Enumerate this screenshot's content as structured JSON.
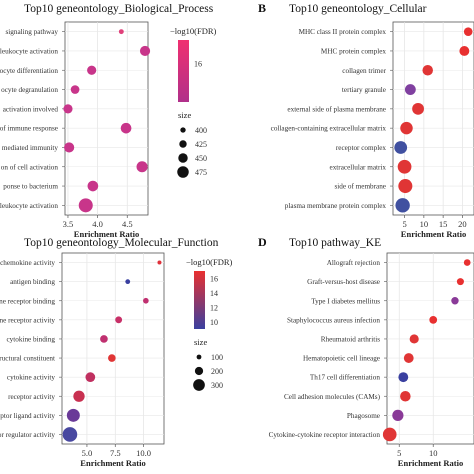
{
  "panels": {
    "A": {
      "letter": "",
      "title": "Top10 geneontology_Biological_Process",
      "xlabel": "Enrichment Ratio",
      "legend_color_title": "−log10(FDR)",
      "legend_size_title": "size"
    },
    "B": {
      "letter": "B",
      "title": "Top10 geneontology_Cellular",
      "xlabel": "Enrichment Ratio"
    },
    "C": {
      "letter": "",
      "title": "Top10 geneontology_Molecular_Function",
      "xlabel": "Enrichment Ratio",
      "legend_color_title": "−log10(FDR)",
      "legend_size_title": "size"
    },
    "D": {
      "letter": "D",
      "title": "Top10 pathway_KE",
      "xlabel": "Enrichment Ratio"
    }
  },
  "chart_data": [
    {
      "panel": "A",
      "type": "scatter",
      "title": "Top10 geneontology_Biological_Process",
      "xlabel": "Enrichment Ratio",
      "ylabel": "",
      "xlim": [
        3.45,
        4.85
      ],
      "xticks": [
        "3.5",
        "4.0",
        "4.5"
      ],
      "xtick_values": [
        3.5,
        4.0,
        4.5
      ],
      "grid": true,
      "color_legend": {
        "title": "−log10(FDR)",
        "ticks": [
          "16"
        ],
        "colors": [
          "#f03070",
          "#b0308a"
        ]
      },
      "size_legend": {
        "title": "size",
        "values": [
          400,
          425,
          450,
          475
        ],
        "labels": [
          "400",
          "425",
          "450",
          "475"
        ]
      },
      "points": [
        {
          "label": "signaling pathway",
          "x": 4.4,
          "size": 385,
          "color": "#e0407a"
        },
        {
          "label": "leukocyte activation",
          "x": 4.8,
          "size": 440,
          "color": "#c8358a"
        },
        {
          "label": "ocyte differentiation",
          "x": 3.9,
          "size": 430,
          "color": "#c8358a"
        },
        {
          "label": "ocyte degranulation",
          "x": 3.62,
          "size": 425,
          "color": "#c8358a"
        },
        {
          "label": "activation involved",
          "x": 3.5,
          "size": 430,
          "color": "#c8358a"
        },
        {
          "label": "of immune response",
          "x": 4.48,
          "size": 445,
          "color": "#c8358a"
        },
        {
          "label": "mediated immunity",
          "x": 3.52,
          "size": 440,
          "color": "#c8358a"
        },
        {
          "label": "on of cell activation",
          "x": 4.75,
          "size": 450,
          "color": "#c8358a"
        },
        {
          "label": "ponse to bacterium",
          "x": 3.92,
          "size": 445,
          "color": "#c8358a"
        },
        {
          "label": "leukocyte activation",
          "x": 3.8,
          "size": 480,
          "color": "#c8358a"
        }
      ]
    },
    {
      "panel": "B",
      "type": "scatter",
      "title": "Top10 geneontology_Cellular",
      "xlabel": "Enrichment Ratio",
      "ylabel": "",
      "xlim": [
        2,
        23
      ],
      "xticks": [
        "5",
        "10",
        "15",
        "20"
      ],
      "xtick_values": [
        5,
        10,
        15,
        20
      ],
      "grid": true,
      "points": [
        {
          "label": "MHC class II protein complex",
          "x": 21.5,
          "size": 200,
          "color": "#e83030"
        },
        {
          "label": "MHC protein complex",
          "x": 20.5,
          "size": 240,
          "color": "#e83030"
        },
        {
          "label": "collagen trimer",
          "x": 11.0,
          "size": 260,
          "color": "#e03535"
        },
        {
          "label": "tertiary granule",
          "x": 6.5,
          "size": 270,
          "color": "#8040a0"
        },
        {
          "label": "external side of plasma membrane",
          "x": 8.5,
          "size": 300,
          "color": "#e03535"
        },
        {
          "label": "collagen-containing extracellular matrix",
          "x": 5.5,
          "size": 320,
          "color": "#e03535"
        },
        {
          "label": "receptor complex",
          "x": 4.0,
          "size": 330,
          "color": "#4050a0"
        },
        {
          "label": "extracellular matrix",
          "x": 5.0,
          "size": 360,
          "color": "#e03535"
        },
        {
          "label": "side of membrane",
          "x": 5.2,
          "size": 370,
          "color": "#e03535"
        },
        {
          "label": "plasma membrane protein complex",
          "x": 4.5,
          "size": 380,
          "color": "#4050a0"
        }
      ]
    },
    {
      "panel": "C",
      "type": "scatter",
      "title": "Top10 geneontology_Molecular_Function",
      "xlabel": "Enrichment Ratio",
      "ylabel": "",
      "xlim": [
        2.8,
        11.8
      ],
      "xticks": [
        "5.0",
        "7.5",
        "10.0"
      ],
      "xtick_values": [
        5.0,
        7.5,
        10.0
      ],
      "grid": true,
      "color_legend": {
        "title": "−log10(FDR)",
        "ticks": [
          "16",
          "14",
          "12",
          "10"
        ],
        "colors": [
          "#e83030",
          "#3a40a0"
        ]
      },
      "size_legend": {
        "title": "size",
        "values": [
          100,
          200,
          300
        ],
        "labels": [
          "100",
          "200",
          "300"
        ]
      },
      "points": [
        {
          "label": "chemokine activity",
          "x": 11.4,
          "size": 60,
          "color": "#e0303a"
        },
        {
          "label": "antigen binding",
          "x": 8.6,
          "size": 80,
          "color": "#3a40a0"
        },
        {
          "label": "mune receptor binding",
          "x": 10.2,
          "size": 100,
          "color": "#c03070"
        },
        {
          "label": "mune receptor activity",
          "x": 7.8,
          "size": 130,
          "color": "#c83068"
        },
        {
          "label": "cytokine binding",
          "x": 6.5,
          "size": 150,
          "color": "#c03070"
        },
        {
          "label": "structural constituent",
          "x": 7.2,
          "size": 150,
          "color": "#e03535"
        },
        {
          "label": "cytokine activity",
          "x": 5.3,
          "size": 200,
          "color": "#c03060"
        },
        {
          "label": "receptor activity",
          "x": 4.3,
          "size": 240,
          "color": "#c83050"
        },
        {
          "label": "receptor ligand activity",
          "x": 3.8,
          "size": 280,
          "color": "#6a3a98"
        },
        {
          "label": "receptor regulator activity",
          "x": 3.5,
          "size": 320,
          "color": "#4848a0"
        }
      ]
    },
    {
      "panel": "D",
      "type": "scatter",
      "title": "Top10 pathway_KE",
      "xlabel": "Enrichment Ratio",
      "ylabel": "",
      "xlim": [
        3.2,
        16
      ],
      "xticks": [
        "5",
        "10"
      ],
      "xtick_values": [
        5,
        10
      ],
      "grid": true,
      "points": [
        {
          "label": "Allograft rejection",
          "x": 15.0,
          "size": 120,
          "color": "#e83030"
        },
        {
          "label": "Graft-versus-host disease",
          "x": 14.0,
          "size": 130,
          "color": "#e83030"
        },
        {
          "label": "Type I diabetes mellitus",
          "x": 13.2,
          "size": 140,
          "color": "#8a3a98"
        },
        {
          "label": "Staphylococcus aureus infection",
          "x": 10.0,
          "size": 150,
          "color": "#e83030"
        },
        {
          "label": "Rheumatoid arthritis",
          "x": 7.2,
          "size": 190,
          "color": "#e03535"
        },
        {
          "label": "Hematopoietic cell lineage",
          "x": 6.4,
          "size": 210,
          "color": "#e03535"
        },
        {
          "label": "Th17 cell differentiation",
          "x": 5.6,
          "size": 210,
          "color": "#3a40a0"
        },
        {
          "label": "Cell adhesion molecules (CAMs)",
          "x": 5.9,
          "size": 230,
          "color": "#e03535"
        },
        {
          "label": "Phagosome",
          "x": 4.8,
          "size": 250,
          "color": "#8a3a98"
        },
        {
          "label": "Cytokine-cytokine receptor interaction",
          "x": 3.6,
          "size": 320,
          "color": "#e03535"
        }
      ]
    }
  ]
}
